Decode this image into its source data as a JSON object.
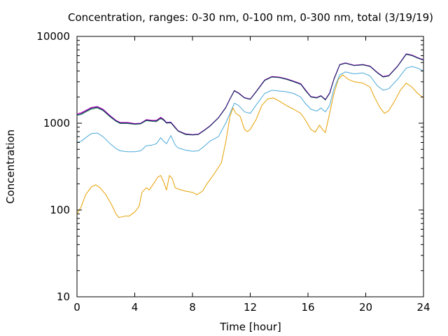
{
  "chart_data": {
    "type": "line",
    "title": "Concentration, ranges: 0-30 nm, 0-100 nm, 0-300 nm, total (3/19/19)",
    "xlabel": "Time [hour]",
    "ylabel": "Concentration",
    "xlim": [
      0,
      24
    ],
    "ylim": [
      10,
      10000
    ],
    "yscale": "log",
    "xticks": [
      0,
      4,
      8,
      12,
      16,
      20,
      24
    ],
    "xtick_labels": [
      "0",
      "4",
      "8",
      "12",
      "16",
      "20",
      "24"
    ],
    "yticks": [
      10,
      100,
      1000,
      10000
    ],
    "ytick_labels": [
      "10",
      "100",
      "1000",
      "10000"
    ],
    "grid": false,
    "legend": "none",
    "series": [
      {
        "color": "#e6a000",
        "points": [
          [
            0,
            90
          ],
          [
            0.3,
            110
          ],
          [
            0.6,
            150
          ],
          [
            1,
            185
          ],
          [
            1.3,
            195
          ],
          [
            1.6,
            180
          ],
          [
            2,
            150
          ],
          [
            2.4,
            115
          ],
          [
            2.7,
            90
          ],
          [
            2.9,
            82
          ],
          [
            3.3,
            85
          ],
          [
            3.6,
            85
          ],
          [
            4,
            95
          ],
          [
            4.3,
            110
          ],
          [
            4.5,
            160
          ],
          [
            4.8,
            180
          ],
          [
            5,
            170
          ],
          [
            5.3,
            200
          ],
          [
            5.6,
            240
          ],
          [
            5.8,
            250
          ],
          [
            6,
            210
          ],
          [
            6.2,
            170
          ],
          [
            6.4,
            250
          ],
          [
            6.6,
            230
          ],
          [
            6.8,
            180
          ],
          [
            7,
            175
          ],
          [
            7.5,
            165
          ],
          [
            8,
            160
          ],
          [
            8.3,
            150
          ],
          [
            8.7,
            165
          ],
          [
            9,
            200
          ],
          [
            9.5,
            260
          ],
          [
            10,
            350
          ],
          [
            10.3,
            600
          ],
          [
            10.6,
            1200
          ],
          [
            10.8,
            1500
          ],
          [
            11,
            1300
          ],
          [
            11.3,
            1200
          ],
          [
            11.6,
            850
          ],
          [
            11.8,
            800
          ],
          [
            12,
            850
          ],
          [
            12.4,
            1100
          ],
          [
            12.8,
            1600
          ],
          [
            13.2,
            1900
          ],
          [
            13.6,
            1950
          ],
          [
            14,
            1800
          ],
          [
            14.5,
            1600
          ],
          [
            15,
            1450
          ],
          [
            15.5,
            1300
          ],
          [
            15.8,
            1100
          ],
          [
            16.2,
            850
          ],
          [
            16.5,
            790
          ],
          [
            16.8,
            950
          ],
          [
            17,
            850
          ],
          [
            17.2,
            780
          ],
          [
            17.5,
            1300
          ],
          [
            17.8,
            2200
          ],
          [
            18.1,
            3200
          ],
          [
            18.4,
            3600
          ],
          [
            18.8,
            3200
          ],
          [
            19.2,
            3000
          ],
          [
            19.8,
            2900
          ],
          [
            20.3,
            2600
          ],
          [
            20.6,
            2000
          ],
          [
            21,
            1500
          ],
          [
            21.3,
            1300
          ],
          [
            21.6,
            1400
          ],
          [
            22,
            1800
          ],
          [
            22.4,
            2400
          ],
          [
            22.8,
            2900
          ],
          [
            23.2,
            2600
          ],
          [
            23.6,
            2200
          ],
          [
            24,
            1950
          ]
        ]
      },
      {
        "color": "#4aa8d8",
        "points": [
          [
            0,
            600
          ],
          [
            0.3,
            620
          ],
          [
            0.7,
            700
          ],
          [
            1,
            760
          ],
          [
            1.4,
            770
          ],
          [
            1.8,
            700
          ],
          [
            2.3,
            580
          ],
          [
            2.7,
            510
          ],
          [
            3,
            480
          ],
          [
            3.5,
            470
          ],
          [
            4,
            470
          ],
          [
            4.4,
            480
          ],
          [
            4.8,
            550
          ],
          [
            5.2,
            560
          ],
          [
            5.5,
            580
          ],
          [
            5.8,
            680
          ],
          [
            6,
            620
          ],
          [
            6.2,
            580
          ],
          [
            6.5,
            720
          ],
          [
            6.8,
            560
          ],
          [
            7,
            520
          ],
          [
            7.5,
            490
          ],
          [
            8,
            475
          ],
          [
            8.4,
            480
          ],
          [
            8.8,
            540
          ],
          [
            9.2,
            620
          ],
          [
            9.8,
            700
          ],
          [
            10.3,
            1000
          ],
          [
            10.6,
            1300
          ],
          [
            10.9,
            1700
          ],
          [
            11.2,
            1600
          ],
          [
            11.6,
            1350
          ],
          [
            12,
            1300
          ],
          [
            12.5,
            1700
          ],
          [
            13,
            2200
          ],
          [
            13.5,
            2400
          ],
          [
            14,
            2350
          ],
          [
            14.5,
            2300
          ],
          [
            15,
            2200
          ],
          [
            15.5,
            2000
          ],
          [
            15.8,
            1700
          ],
          [
            16.2,
            1450
          ],
          [
            16.6,
            1380
          ],
          [
            16.9,
            1500
          ],
          [
            17.2,
            1350
          ],
          [
            17.5,
            1600
          ],
          [
            17.8,
            2500
          ],
          [
            18.2,
            3600
          ],
          [
            18.6,
            3900
          ],
          [
            19.2,
            3700
          ],
          [
            19.8,
            3800
          ],
          [
            20.3,
            3500
          ],
          [
            20.8,
            2700
          ],
          [
            21.2,
            2400
          ],
          [
            21.6,
            2500
          ],
          [
            22.2,
            3200
          ],
          [
            22.8,
            4300
          ],
          [
            23.2,
            4500
          ],
          [
            23.6,
            4300
          ],
          [
            24,
            4000
          ]
        ]
      },
      {
        "color": "#2e8b57",
        "points": [
          [
            0,
            1230
          ],
          [
            0.3,
            1260
          ],
          [
            0.7,
            1370
          ],
          [
            1,
            1450
          ],
          [
            1.4,
            1500
          ],
          [
            1.8,
            1400
          ],
          [
            2.3,
            1180
          ],
          [
            2.7,
            1050
          ],
          [
            3,
            990
          ],
          [
            3.5,
            990
          ],
          [
            4,
            970
          ],
          [
            4.4,
            980
          ],
          [
            4.8,
            1070
          ],
          [
            5.2,
            1050
          ],
          [
            5.5,
            1040
          ],
          [
            5.8,
            1130
          ],
          [
            6,
            1080
          ],
          [
            6.2,
            1000
          ],
          [
            6.5,
            1010
          ],
          [
            6.8,
            880
          ],
          [
            7,
            810
          ],
          [
            7.5,
            740
          ],
          [
            8,
            730
          ],
          [
            8.4,
            740
          ],
          [
            8.8,
            820
          ],
          [
            9.2,
            920
          ],
          [
            9.8,
            1150
          ],
          [
            10.3,
            1500
          ],
          [
            10.6,
            1900
          ],
          [
            10.9,
            2350
          ],
          [
            11.2,
            2200
          ],
          [
            11.6,
            1950
          ],
          [
            12,
            1880
          ],
          [
            12.5,
            2400
          ],
          [
            13,
            3100
          ],
          [
            13.5,
            3400
          ],
          [
            14,
            3350
          ],
          [
            14.5,
            3200
          ],
          [
            15,
            3000
          ],
          [
            15.5,
            2800
          ],
          [
            15.8,
            2400
          ],
          [
            16.2,
            2000
          ],
          [
            16.6,
            1950
          ],
          [
            16.9,
            2050
          ],
          [
            17.2,
            1850
          ],
          [
            17.5,
            2200
          ],
          [
            17.8,
            3200
          ],
          [
            18.2,
            4700
          ],
          [
            18.6,
            4900
          ],
          [
            19.2,
            4600
          ],
          [
            19.8,
            4700
          ],
          [
            20.3,
            4500
          ],
          [
            20.8,
            3800
          ],
          [
            21.2,
            3400
          ],
          [
            21.6,
            3500
          ],
          [
            22.2,
            4500
          ],
          [
            22.8,
            6200
          ],
          [
            23.2,
            6000
          ],
          [
            23.6,
            5600
          ],
          [
            24,
            5300
          ]
        ]
      },
      {
        "color": "#c000c0",
        "points": [
          [
            0,
            1280
          ],
          [
            0.3,
            1320
          ],
          [
            0.7,
            1430
          ],
          [
            1,
            1520
          ],
          [
            1.4,
            1560
          ],
          [
            1.8,
            1450
          ],
          [
            2.3,
            1220
          ],
          [
            2.7,
            1080
          ],
          [
            3,
            1020
          ],
          [
            3.5,
            1020
          ],
          [
            4,
            990
          ],
          [
            4.4,
            1000
          ],
          [
            4.8,
            1100
          ],
          [
            5.2,
            1080
          ],
          [
            5.5,
            1080
          ],
          [
            5.8,
            1170
          ],
          [
            6,
            1110
          ],
          [
            6.2,
            1020
          ],
          [
            6.5,
            1030
          ],
          [
            6.8,
            900
          ],
          [
            7,
            820
          ],
          [
            7.5,
            755
          ],
          [
            8,
            740
          ],
          [
            8.4,
            750
          ],
          [
            8.8,
            830
          ],
          [
            9.2,
            930
          ],
          [
            9.8,
            1160
          ],
          [
            10.3,
            1520
          ],
          [
            10.6,
            1920
          ],
          [
            10.9,
            2380
          ],
          [
            11.2,
            2230
          ],
          [
            11.6,
            1970
          ],
          [
            12,
            1900
          ],
          [
            12.5,
            2430
          ],
          [
            13,
            3150
          ],
          [
            13.5,
            3450
          ],
          [
            14,
            3400
          ],
          [
            14.5,
            3250
          ],
          [
            15,
            3050
          ],
          [
            15.5,
            2850
          ],
          [
            15.8,
            2450
          ],
          [
            16.2,
            2030
          ],
          [
            16.6,
            1980
          ],
          [
            16.9,
            2080
          ],
          [
            17.2,
            1880
          ],
          [
            17.5,
            2230
          ],
          [
            17.8,
            3250
          ],
          [
            18.2,
            4750
          ],
          [
            18.6,
            4950
          ],
          [
            19.2,
            4650
          ],
          [
            19.8,
            4750
          ],
          [
            20.3,
            4550
          ],
          [
            20.8,
            3850
          ],
          [
            21.2,
            3450
          ],
          [
            21.6,
            3550
          ],
          [
            22.2,
            4550
          ],
          [
            22.8,
            6300
          ],
          [
            23.2,
            6100
          ],
          [
            23.6,
            5700
          ],
          [
            24,
            5400
          ]
        ]
      },
      {
        "color": "#1a1a6e",
        "points": [
          [
            0,
            1250
          ],
          [
            0.3,
            1290
          ],
          [
            0.7,
            1400
          ],
          [
            1,
            1490
          ],
          [
            1.4,
            1530
          ],
          [
            1.8,
            1420
          ],
          [
            2.3,
            1200
          ],
          [
            2.7,
            1065
          ],
          [
            3,
            1005
          ],
          [
            3.5,
            1005
          ],
          [
            4,
            980
          ],
          [
            4.4,
            990
          ],
          [
            4.8,
            1085
          ],
          [
            5.2,
            1065
          ],
          [
            5.5,
            1060
          ],
          [
            5.8,
            1150
          ],
          [
            6,
            1095
          ],
          [
            6.2,
            1010
          ],
          [
            6.5,
            1020
          ],
          [
            6.8,
            890
          ],
          [
            7,
            815
          ],
          [
            7.5,
            748
          ],
          [
            8,
            735
          ],
          [
            8.4,
            745
          ],
          [
            8.8,
            825
          ],
          [
            9.2,
            925
          ],
          [
            9.8,
            1155
          ],
          [
            10.3,
            1510
          ],
          [
            10.6,
            1910
          ],
          [
            10.9,
            2370
          ],
          [
            11.2,
            2215
          ],
          [
            11.6,
            1960
          ],
          [
            12,
            1890
          ],
          [
            12.5,
            2415
          ],
          [
            13,
            3125
          ],
          [
            13.5,
            3425
          ],
          [
            14,
            3375
          ],
          [
            14.5,
            3225
          ],
          [
            15,
            3025
          ],
          [
            15.5,
            2825
          ],
          [
            15.8,
            2425
          ],
          [
            16.2,
            2015
          ],
          [
            16.6,
            1965
          ],
          [
            16.9,
            2065
          ],
          [
            17.2,
            1865
          ],
          [
            17.5,
            2215
          ],
          [
            17.8,
            3225
          ],
          [
            18.2,
            4725
          ],
          [
            18.6,
            4925
          ],
          [
            19.2,
            4625
          ],
          [
            19.8,
            4725
          ],
          [
            20.3,
            4525
          ],
          [
            20.8,
            3825
          ],
          [
            21.2,
            3425
          ],
          [
            21.6,
            3525
          ],
          [
            22.2,
            4525
          ],
          [
            22.8,
            6250
          ],
          [
            23.2,
            6050
          ],
          [
            23.6,
            5650
          ],
          [
            24,
            5350
          ]
        ]
      }
    ]
  }
}
